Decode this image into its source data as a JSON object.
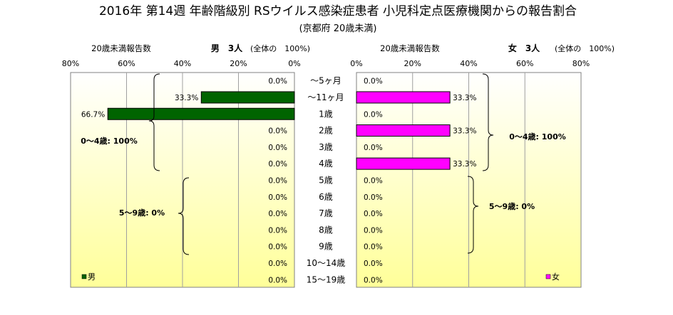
{
  "title": "2016年 第14週 年齢階級別 RSウイルス感染症患者 小児科定点医療機関からの報告割合",
  "subtitle": "(京都府 20歳未満)",
  "colors": {
    "male": "#006400",
    "female": "#ff00ff",
    "plot_gradient_top": "#ffffff",
    "plot_gradient_bottom": "#ffff99"
  },
  "male_panel": {
    "count_label": "20歳未満報告数",
    "sex_count": "男　3人",
    "pct_note": "(全体の　100%)",
    "ticks": [
      "80%",
      "60%",
      "40%",
      "20%",
      "0%"
    ],
    "legend": "男",
    "group_0_4": "0～4歳: 100%",
    "group_5_9": "5～9歳: 0%"
  },
  "female_panel": {
    "count_label": "20歳未満報告数",
    "sex_count": "女　3人",
    "pct_note": "(全体の　100%)",
    "ticks": [
      "0%",
      "20%",
      "40%",
      "60%",
      "80%"
    ],
    "legend": "女",
    "group_0_4": "0～4歳: 100%",
    "group_5_9": "5～9歳: 0%"
  },
  "chart_data": {
    "type": "bar",
    "orientation": "horizontal-population-pyramid",
    "categories": [
      "～5ヶ月",
      "～11ヶ月",
      "1歳",
      "2歳",
      "3歳",
      "4歳",
      "5歳",
      "6歳",
      "7歳",
      "8歳",
      "9歳",
      "10～14歳",
      "15～19歳"
    ],
    "series": [
      {
        "name": "男",
        "values": [
          0.0,
          33.3,
          66.7,
          0.0,
          0.0,
          0.0,
          0.0,
          0.0,
          0.0,
          0.0,
          0.0,
          0.0,
          0.0
        ],
        "labels": [
          "0.0%",
          "33.3%",
          "66.7%",
          "0.0%",
          "0.0%",
          "0.0%",
          "0.0%",
          "0.0%",
          "0.0%",
          "0.0%",
          "0.0%",
          "0.0%",
          "0.0%"
        ]
      },
      {
        "name": "女",
        "values": [
          0.0,
          33.3,
          0.0,
          33.3,
          0.0,
          33.3,
          0.0,
          0.0,
          0.0,
          0.0,
          0.0,
          0.0,
          0.0
        ],
        "labels": [
          "0.0%",
          "33.3%",
          "0.0%",
          "33.3%",
          "0.0%",
          "33.3%",
          "0.0%",
          "0.0%",
          "0.0%",
          "0.0%",
          "0.0%",
          "0.0%",
          "0.0%"
        ]
      }
    ],
    "xlim": [
      0,
      80
    ],
    "grid": true,
    "legend_position": "bottom-left / bottom-right"
  }
}
